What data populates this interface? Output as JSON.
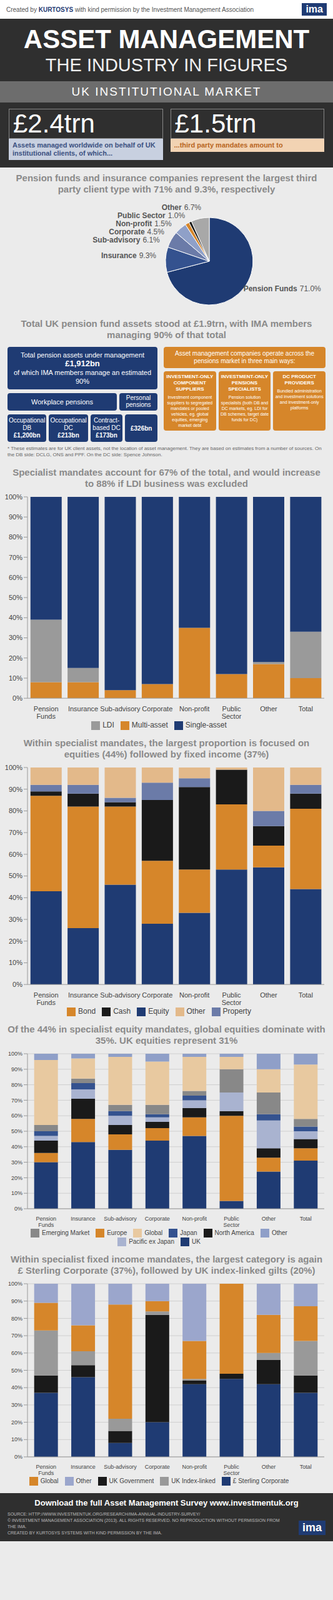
{
  "header": {
    "created_prefix": "Created by",
    "brand": "KURTOSYS",
    "created_suffix": "with kind permission by the Investment Management Association",
    "logo": "ima"
  },
  "title_block": {
    "title": "ASSET MANAGEMENT",
    "subtitle": "THE INDUSTRY IN FIGURES",
    "band": "UK INSTITUTIONAL MARKET"
  },
  "stats": [
    {
      "figure": "£2.4trn",
      "text": "Assets managed worldwide on behalf of UK institutional clients, of which..."
    },
    {
      "figure": "£1.5trn",
      "text": "...third party mandates amount to"
    }
  ],
  "chart_data": [
    {
      "type": "pie",
      "title": "Pension funds and insurance companies represent the largest third party client type with 71% and 9.3%, respectively",
      "categories": [
        "Pension Funds",
        "Insurance",
        "Sub-advisory",
        "Corporate",
        "Non-profit",
        "Public Sector",
        "Other"
      ],
      "values": [
        71.0,
        9.3,
        6.1,
        4.5,
        1.5,
        1.0,
        6.7
      ],
      "value_labels": [
        "71.0%",
        "9.3%",
        "6.1%",
        "4.5%",
        "1.5%",
        "1.0%",
        "6.7%"
      ],
      "colors": [
        "#1f3b73",
        "#34528f",
        "#6b7ba8",
        "#8fa0c8",
        "#d6862a",
        "#1a1a1a",
        "#a8a8a8"
      ]
    },
    {
      "type": "bar",
      "stacked": true,
      "title": "Specialist mandates account for 67% of the total, and would increase to 88% if LDI business was excluded",
      "categories": [
        "Pension Funds",
        "Insurance",
        "Sub-advisory",
        "Corporate",
        "Non-profit",
        "Public Sector",
        "Other",
        "Total"
      ],
      "series": [
        {
          "name": "Multi-asset",
          "color": "#d6862a",
          "values": [
            8,
            8,
            4,
            7,
            35,
            12,
            17,
            10
          ]
        },
        {
          "name": "LDI",
          "color": "#9a9a9a",
          "values": [
            31,
            7,
            0,
            0,
            0,
            0,
            1,
            23
          ]
        },
        {
          "name": "Single-asset",
          "color": "#1f3b73",
          "values": [
            61,
            85,
            96,
            93,
            65,
            88,
            82,
            67
          ]
        }
      ],
      "ylim": [
        0,
        100
      ],
      "yticks": [
        {
          "value": 0,
          "label": "0%"
        },
        {
          "value": 10,
          "label": "10%"
        },
        {
          "value": 20,
          "label": "20%"
        },
        {
          "value": 30,
          "label": "30%"
        },
        {
          "value": 40,
          "label": "40%"
        },
        {
          "value": 50,
          "label": "50%"
        },
        {
          "value": 60,
          "label": "60%"
        },
        {
          "value": 70,
          "label": "70%"
        },
        {
          "value": 80,
          "label": "80%"
        },
        {
          "value": 90,
          "label": "90%"
        },
        {
          "value": 100,
          "label": "100%"
        }
      ],
      "grid": false,
      "legend": "bottom"
    },
    {
      "type": "bar",
      "stacked": true,
      "title": "Within specialist mandates, the largest proportion is focused on equities (44%) followed by fixed income (37%)",
      "categories": [
        "Pension Funds",
        "Insurance",
        "Sub-advisory",
        "Corporate",
        "Non-profit",
        "Public Sector",
        "Other",
        "Total"
      ],
      "series": [
        {
          "name": "Equity",
          "color": "#1f3b73",
          "values": [
            43,
            26,
            46,
            28,
            33,
            53,
            54,
            44
          ]
        },
        {
          "name": "Bond",
          "color": "#d6862a",
          "values": [
            44,
            56,
            36,
            29,
            20,
            30,
            10,
            37
          ]
        },
        {
          "name": "Cash",
          "color": "#1a1a1a",
          "values": [
            2,
            6,
            2,
            28,
            38,
            16,
            9,
            7
          ]
        },
        {
          "name": "Property",
          "color": "#6b7ba8",
          "values": [
            3,
            4,
            2,
            8,
            4,
            0,
            7,
            4
          ]
        },
        {
          "name": "Other",
          "color": "#e3b98a",
          "values": [
            8,
            8,
            14,
            7,
            5,
            1,
            20,
            8
          ]
        }
      ],
      "ylim": [
        0,
        100
      ],
      "yticks": [
        {
          "value": 0,
          "label": "0%"
        },
        {
          "value": 10,
          "label": "10%"
        },
        {
          "value": 20,
          "label": "20%"
        },
        {
          "value": 30,
          "label": "30%"
        },
        {
          "value": 40,
          "label": "40%"
        },
        {
          "value": 50,
          "label": "50%"
        },
        {
          "value": 60,
          "label": "60%"
        },
        {
          "value": 70,
          "label": "70%"
        },
        {
          "value": 80,
          "label": "80%"
        },
        {
          "value": 90,
          "label": "90%"
        },
        {
          "value": 100,
          "label": "100%"
        }
      ],
      "grid": false,
      "legend": "bottom"
    },
    {
      "type": "bar",
      "stacked": true,
      "title": "Of the 44% in specialist equity mandates, global equities dominate with 35%.  UK equities represent 31%",
      "categories": [
        "Pension Funds",
        "Insurance",
        "Sub-advisory",
        "Corporate",
        "Non-profit",
        "Public Sector",
        "Other",
        "Total"
      ],
      "series": [
        {
          "name": "UK",
          "color": "#1f3b73",
          "values": [
            30,
            43,
            38,
            44,
            47,
            5,
            24,
            31
          ]
        },
        {
          "name": "Europe",
          "color": "#d6862a",
          "values": [
            6,
            15,
            10,
            8,
            12,
            55,
            9,
            8
          ]
        },
        {
          "name": "North America",
          "color": "#1a1a1a",
          "values": [
            8,
            13,
            6,
            4,
            6,
            3,
            6,
            6
          ]
        },
        {
          "name": "Pacific ex Japan",
          "color": "#a9b3d0",
          "values": [
            3,
            6,
            6,
            3,
            5,
            12,
            18,
            5
          ]
        },
        {
          "name": "Japan",
          "color": "#34528f",
          "values": [
            3,
            4,
            3,
            2,
            3,
            0,
            4,
            3
          ]
        },
        {
          "name": "Emerging Market",
          "color": "#888888",
          "values": [
            4,
            3,
            4,
            6,
            3,
            15,
            14,
            5
          ]
        },
        {
          "name": "Global",
          "color": "#e8c9a0",
          "values": [
            42,
            13,
            31,
            28,
            22,
            8,
            15,
            35
          ]
        },
        {
          "name": "Other",
          "color": "#8f9fc8",
          "values": [
            4,
            3,
            2,
            5,
            2,
            2,
            10,
            7
          ]
        }
      ],
      "ylim": [
        0,
        100
      ],
      "yticks": [
        {
          "value": 0,
          "label": "0%"
        },
        {
          "value": 10,
          "label": "10%"
        },
        {
          "value": 20,
          "label": "20%"
        },
        {
          "value": 30,
          "label": "30%"
        },
        {
          "value": 40,
          "label": "40%"
        },
        {
          "value": 50,
          "label": "50%"
        },
        {
          "value": 60,
          "label": "60%"
        },
        {
          "value": 70,
          "label": "70%"
        },
        {
          "value": 80,
          "label": "80%"
        },
        {
          "value": 90,
          "label": "90%"
        },
        {
          "value": 100,
          "label": "100%"
        }
      ],
      "grid": true,
      "legend": "bottom"
    },
    {
      "type": "bar",
      "stacked": true,
      "title": "Within specialist fixed income mandates, the largest category is again £ Sterling Corporate (37%), followed by UK index-linked gilts (20%)",
      "categories": [
        "Pension Funds",
        "Insurance",
        "Sub-advisory",
        "Corporate",
        "Non-profit",
        "Public Sector",
        "Other",
        "Total"
      ],
      "series": [
        {
          "name": "£ Sterling Corporate",
          "color": "#1f3b73",
          "values": [
            37,
            46,
            8,
            20,
            42,
            45,
            42,
            37
          ]
        },
        {
          "name": "UK Government",
          "color": "#1a1a1a",
          "values": [
            10,
            7,
            7,
            62,
            2,
            3,
            14,
            10
          ]
        },
        {
          "name": "UK Index-linked",
          "color": "#999999",
          "values": [
            26,
            8,
            7,
            2,
            1,
            0,
            4,
            20
          ]
        },
        {
          "name": "Global",
          "color": "#d6862a",
          "values": [
            16,
            15,
            66,
            6,
            22,
            52,
            22,
            20
          ]
        },
        {
          "name": "Other",
          "color": "#9ba6cc",
          "values": [
            11,
            24,
            12,
            10,
            33,
            0,
            18,
            13
          ]
        }
      ],
      "ylim": [
        0,
        100
      ],
      "yticks": [
        {
          "value": 0,
          "label": "0%"
        },
        {
          "value": 10,
          "label": "10%"
        },
        {
          "value": 20,
          "label": "20%"
        },
        {
          "value": 30,
          "label": "30%"
        },
        {
          "value": 40,
          "label": "40%"
        },
        {
          "value": 50,
          "label": "50%"
        },
        {
          "value": 60,
          "label": "60%"
        },
        {
          "value": 70,
          "label": "70%"
        },
        {
          "value": 80,
          "label": "80%"
        },
        {
          "value": 90,
          "label": "90%"
        },
        {
          "value": 100,
          "label": "100%"
        }
      ],
      "grid": true,
      "legend": "bottom"
    }
  ],
  "pension_section": {
    "title": "Total UK pension fund assets stood at £1.9trn, with IMA members managing 90% of that total",
    "total_line1": "Total pension assets under management",
    "total_amount": "£1,912bn",
    "total_line2": "of which IMA members manage an estimated 90%",
    "workplace": "Workplace pensions",
    "personal": "Personal pensions",
    "sub_boxes": [
      {
        "label": "Occupational DB",
        "amount": "£1,200bn"
      },
      {
        "label": "Occupational DC",
        "amount": "£213bn"
      },
      {
        "label": "Contract-based DC",
        "amount": "£173bn"
      }
    ],
    "personal_amount": "£326bn",
    "right_heading": "Asset management companies operate across the pensions market in three main ways:",
    "ways": [
      {
        "title": "INVESTMENT-ONLY COMPONENT SUPPLIERS",
        "text": "Investment component suppliers to segregated mandates or pooled vehicles, eg. global equities, emerging market debt"
      },
      {
        "title": "INVESTMENT-ONLY PENSIONS SPECIALISTS",
        "text": "Pension solution specialists (both DB and DC markets, eg. LDI for DB schemes, target date funds for DC)"
      },
      {
        "title": "DC PRODUCT PROVIDERS",
        "text": "Bundled administration and investment solutions and investment-only platforms"
      }
    ],
    "footnote": "* These estimates are for UK client assets, not the location of asset management.  They are based on estimates from a number of sources.  On the DB side:  DCLG, ONS and PPF.  On the DC side: Spence Johnson."
  },
  "footer": {
    "download": "Download the full Asset Management Survey www.investmentuk.org",
    "source": "SOURCE: HTTP://WWW.INVESTMENTUK.ORG/RESEARCH/IMA-ANNUAL-INDUSTRY-SURVEY/",
    "copyright": "© INVESTMENT MANAGEMENT ASSOCIATION (2013). ALL RIGHTS RESERVED. NO REPRODUCTION WITHOUT PERMISSION FROM THE IMA.",
    "created": "CREATED BY KURTOSYS SYSTEMS WITH KIND PERMISSION BY THE IMA.",
    "logo": "ima"
  }
}
